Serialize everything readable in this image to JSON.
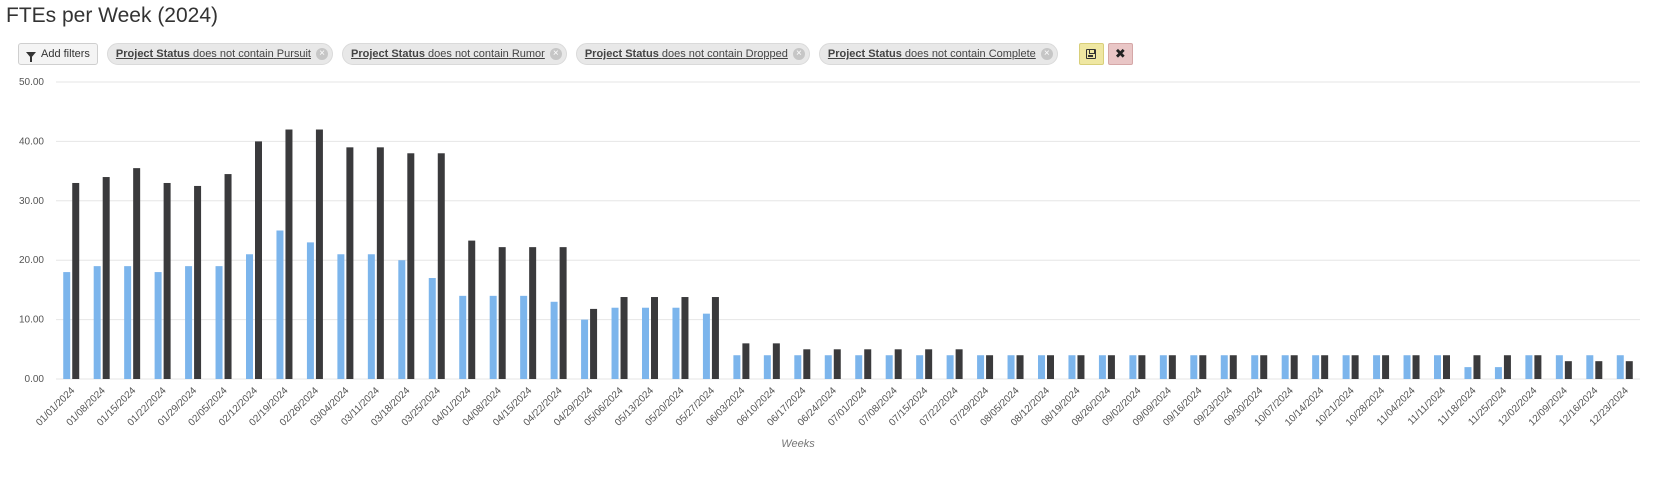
{
  "page": {
    "title": "FTEs per Week (2024)"
  },
  "filters": {
    "add_label": "Add filters",
    "items": [
      {
        "field": "Project Status",
        "op": "does not contain",
        "value": "Pursuit",
        "remove": "×"
      },
      {
        "field": "Project Status",
        "op": "does not contain",
        "value": "Rumor",
        "remove": "×"
      },
      {
        "field": "Project Status",
        "op": "does not contain",
        "value": "Dropped",
        "remove": "×"
      },
      {
        "field": "Project Status",
        "op": "does not contain",
        "value": "Complete",
        "remove": "×"
      }
    ],
    "cancel_glyph": "✖"
  },
  "colors": {
    "series_a": "#7cb5ec",
    "series_b": "#3a3a3c",
    "grid": "#e6e6e6",
    "save_bg": "#efe7a2",
    "cancel_bg": "#e9c6c6"
  },
  "chart_data": {
    "type": "bar",
    "title": "",
    "xlabel": "Weeks",
    "ylabel": "",
    "ylim": [
      0,
      50
    ],
    "yticks": [
      "0.00",
      "10.00",
      "20.00",
      "30.00",
      "40.00",
      "50.00"
    ],
    "grid": true,
    "categories": [
      "01/01/2024",
      "01/08/2024",
      "01/15/2024",
      "01/22/2024",
      "01/29/2024",
      "02/05/2024",
      "02/12/2024",
      "02/19/2024",
      "02/26/2024",
      "03/04/2024",
      "03/11/2024",
      "03/18/2024",
      "03/25/2024",
      "04/01/2024",
      "04/08/2024",
      "04/15/2024",
      "04/22/2024",
      "04/29/2024",
      "05/06/2024",
      "05/13/2024",
      "05/20/2024",
      "05/27/2024",
      "06/03/2024",
      "06/10/2024",
      "06/17/2024",
      "06/24/2024",
      "07/01/2024",
      "07/08/2024",
      "07/15/2024",
      "07/22/2024",
      "07/29/2024",
      "08/05/2024",
      "08/12/2024",
      "08/19/2024",
      "08/26/2024",
      "09/02/2024",
      "09/09/2024",
      "09/16/2024",
      "09/23/2024",
      "09/30/2024",
      "10/07/2024",
      "10/14/2024",
      "10/21/2024",
      "10/28/2024",
      "11/04/2024",
      "11/11/2024",
      "11/18/2024",
      "11/25/2024",
      "12/02/2024",
      "12/09/2024",
      "12/16/2024",
      "12/23/2024"
    ],
    "series": [
      {
        "values": [
          18,
          19,
          19,
          18,
          19,
          19,
          21,
          25,
          23,
          21,
          21,
          20,
          17,
          14,
          14,
          14,
          13,
          10,
          12,
          12,
          12,
          11,
          4,
          4,
          4,
          4,
          4,
          4,
          4,
          4,
          4,
          4,
          4,
          4,
          4,
          4,
          4,
          4,
          4,
          4,
          4,
          4,
          4,
          4,
          4,
          4,
          2,
          2,
          4,
          4,
          4,
          4
        ]
      },
      {
        "values": [
          33,
          34,
          35.5,
          33,
          32.5,
          34.5,
          40,
          42,
          42,
          39,
          39,
          38,
          38,
          23.3,
          22.2,
          22.2,
          22.2,
          11.8,
          13.8,
          13.8,
          13.8,
          13.8,
          6,
          6,
          5,
          5,
          5,
          5,
          5,
          5,
          4,
          4,
          4,
          4,
          4,
          4,
          4,
          4,
          4,
          4,
          4,
          4,
          4,
          4,
          4,
          4,
          4,
          4,
          4,
          3,
          3,
          3
        ]
      }
    ]
  }
}
